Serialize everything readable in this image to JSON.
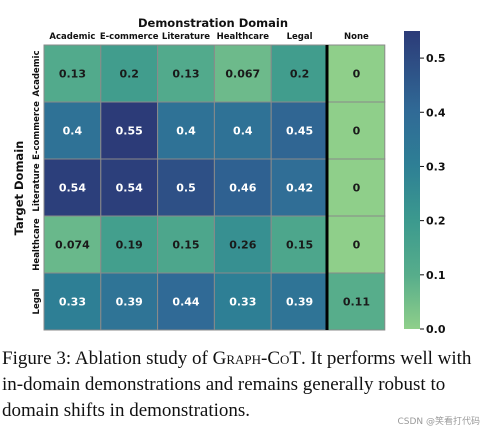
{
  "chart_data": {
    "type": "heatmap",
    "title": "Demonstration Domain",
    "xlabel": "Demonstration Domain",
    "ylabel": "Target Domain",
    "columns": [
      "Academic",
      "E-commerce",
      "Literature",
      "Healthcare",
      "Legal",
      "None"
    ],
    "rows": [
      "Academic",
      "E-commerce",
      "Literature",
      "Healthcare",
      "Legal"
    ],
    "values": [
      [
        0.13,
        0.2,
        0.13,
        0.067,
        0.2,
        0
      ],
      [
        0.4,
        0.55,
        0.4,
        0.4,
        0.45,
        0
      ],
      [
        0.54,
        0.54,
        0.5,
        0.46,
        0.42,
        0
      ],
      [
        0.074,
        0.19,
        0.15,
        0.26,
        0.15,
        0
      ],
      [
        0.33,
        0.39,
        0.44,
        0.33,
        0.39,
        0.11
      ]
    ],
    "value_labels": [
      [
        "0.13",
        "0.2",
        "0.13",
        "0.067",
        "0.2",
        "0"
      ],
      [
        "0.4",
        "0.55",
        "0.4",
        "0.4",
        "0.45",
        "0"
      ],
      [
        "0.54",
        "0.54",
        "0.5",
        "0.46",
        "0.42",
        "0"
      ],
      [
        "0.074",
        "0.19",
        "0.15",
        "0.26",
        "0.15",
        "0"
      ],
      [
        "0.33",
        "0.39",
        "0.44",
        "0.33",
        "0.39",
        "0.11"
      ]
    ],
    "colorbar": {
      "min": 0.0,
      "max": 0.55,
      "ticks": [
        0.0,
        0.1,
        0.2,
        0.3,
        0.4,
        0.5
      ],
      "tick_labels": [
        "0.0",
        "0.1",
        "0.2",
        "0.3",
        "0.4",
        "0.5"
      ],
      "colormap": "crest",
      "colors": [
        "#8fcf8a",
        "#57ad8b",
        "#3c9a8e",
        "#2e7f95",
        "#306a96",
        "#2c3b78"
      ]
    },
    "separator_before_column": "None"
  },
  "caption": {
    "label": "Figure 3:",
    "text_before": "Ablation study of",
    "method": "Graph-CoT",
    "text_after": ". It performs well with in-domain demonstrations and remains generally robust to domain shifts in demonstrations."
  },
  "watermark": "CSDN @笑看打代码"
}
